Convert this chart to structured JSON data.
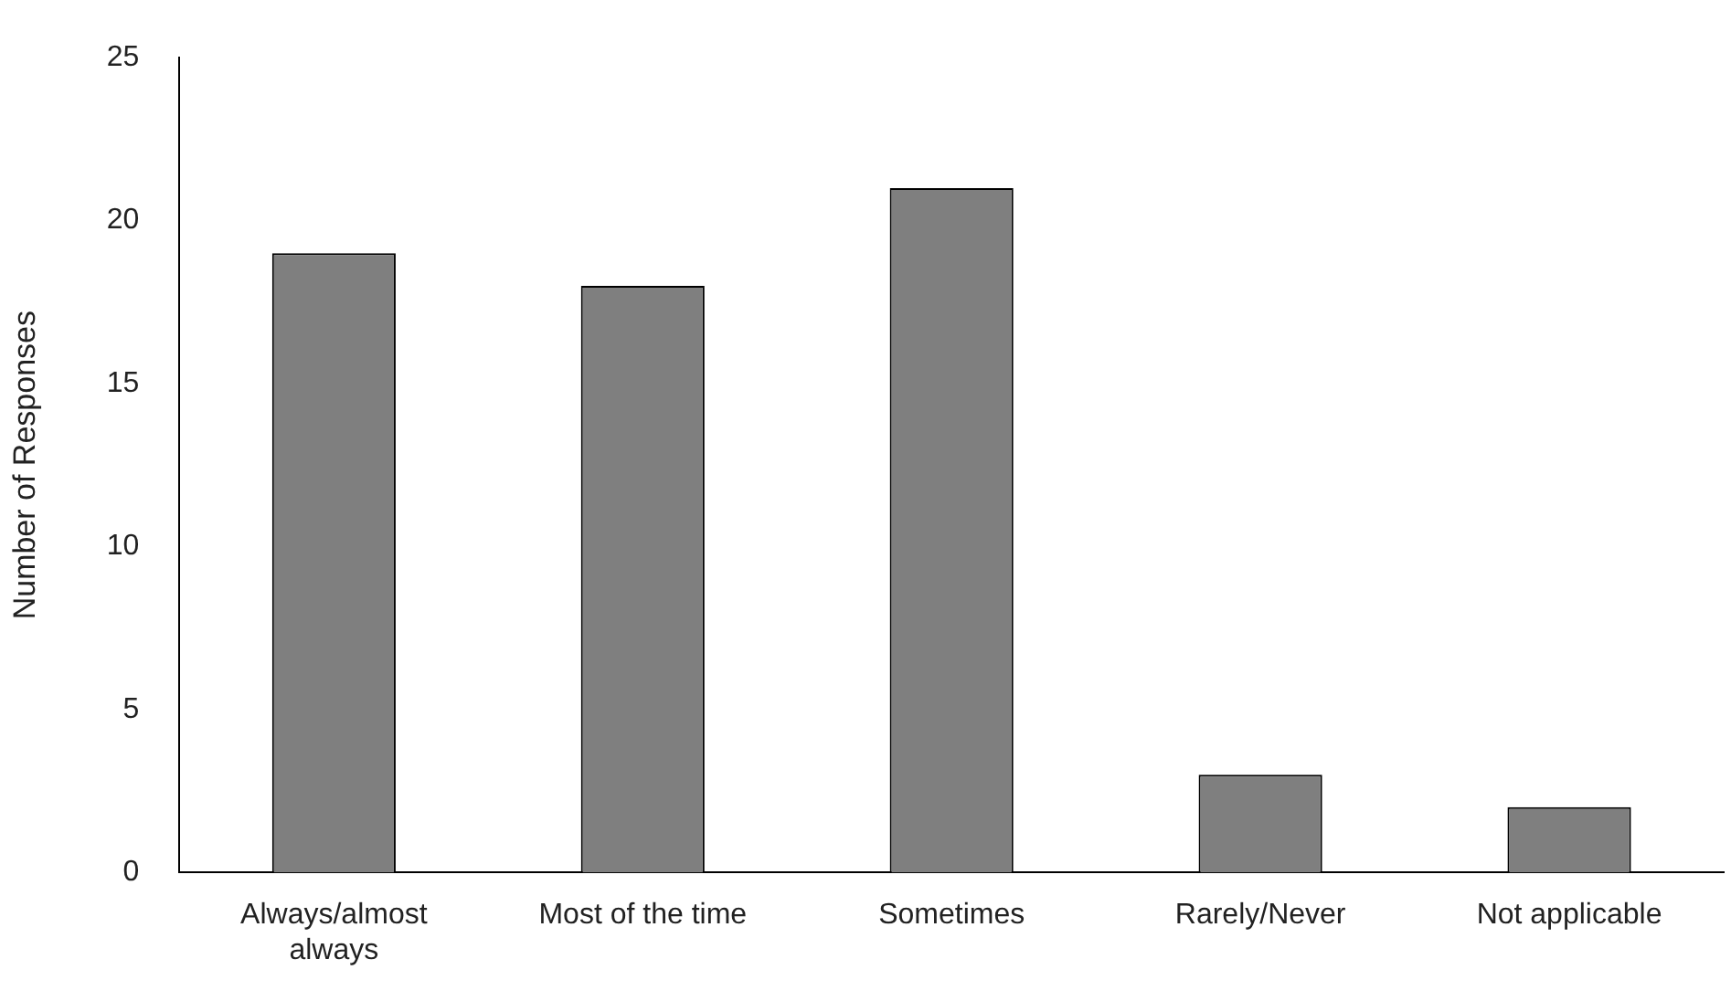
{
  "chart_data": {
    "type": "bar",
    "ylabel": "Number of Responses",
    "categories": [
      "Always/almost always",
      "Most of the time",
      "Sometimes",
      "Rarely/Never",
      "Not applicable"
    ],
    "values": [
      19,
      18,
      21,
      3,
      2
    ],
    "color": "#7f7f7f",
    "ylim": [
      0,
      25
    ],
    "yticks": [
      0,
      5,
      10,
      15,
      20,
      25
    ],
    "grid": false,
    "legend": false
  }
}
